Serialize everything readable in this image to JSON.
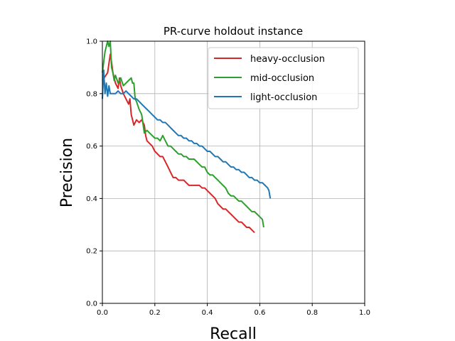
{
  "chart_data": {
    "type": "line",
    "title": "PR-curve holdout instance",
    "xlabel": "Recall",
    "ylabel": "Precision",
    "xlim": [
      0,
      1
    ],
    "ylim": [
      0,
      1
    ],
    "xticks": [
      "0.0",
      "0.2",
      "0.4",
      "0.6",
      "0.8",
      "1.0"
    ],
    "yticks": [
      "0.0",
      "0.2",
      "0.4",
      "0.6",
      "0.8",
      "1.0"
    ],
    "grid": true,
    "legend_position": "top-right",
    "series": [
      {
        "name": "heavy-occlusion",
        "color": "#d62728",
        "x": [
          0.0,
          0.02,
          0.03,
          0.035,
          0.04,
          0.05,
          0.06,
          0.065,
          0.07,
          0.08,
          0.09,
          0.1,
          0.105,
          0.11,
          0.12,
          0.13,
          0.14,
          0.15,
          0.16,
          0.165,
          0.17,
          0.18,
          0.19,
          0.2,
          0.21,
          0.22,
          0.23,
          0.24,
          0.25,
          0.26,
          0.27,
          0.28,
          0.29,
          0.3,
          0.31,
          0.32,
          0.33,
          0.34,
          0.35,
          0.36,
          0.37,
          0.38,
          0.39,
          0.4,
          0.41,
          0.42,
          0.43,
          0.44,
          0.45,
          0.46,
          0.47,
          0.48,
          0.49,
          0.5,
          0.51,
          0.52,
          0.53,
          0.54,
          0.55,
          0.56,
          0.57,
          0.58
        ],
        "y": [
          0.85,
          0.88,
          0.95,
          0.92,
          0.88,
          0.84,
          0.82,
          0.86,
          0.83,
          0.8,
          0.78,
          0.76,
          0.78,
          0.72,
          0.68,
          0.7,
          0.69,
          0.7,
          0.68,
          0.64,
          0.62,
          0.61,
          0.6,
          0.58,
          0.57,
          0.56,
          0.56,
          0.54,
          0.52,
          0.5,
          0.48,
          0.48,
          0.47,
          0.47,
          0.47,
          0.46,
          0.45,
          0.45,
          0.45,
          0.45,
          0.45,
          0.44,
          0.44,
          0.43,
          0.42,
          0.41,
          0.4,
          0.38,
          0.37,
          0.36,
          0.36,
          0.35,
          0.34,
          0.33,
          0.32,
          0.31,
          0.31,
          0.3,
          0.29,
          0.29,
          0.28,
          0.27
        ]
      },
      {
        "name": "mid-occlusion",
        "color": "#2ca02c",
        "x": [
          0.0,
          0.01,
          0.02,
          0.025,
          0.03,
          0.035,
          0.04,
          0.045,
          0.05,
          0.06,
          0.07,
          0.08,
          0.09,
          0.1,
          0.11,
          0.115,
          0.12,
          0.125,
          0.13,
          0.14,
          0.15,
          0.16,
          0.17,
          0.18,
          0.19,
          0.2,
          0.21,
          0.22,
          0.23,
          0.24,
          0.25,
          0.26,
          0.27,
          0.28,
          0.29,
          0.3,
          0.31,
          0.32,
          0.33,
          0.34,
          0.35,
          0.36,
          0.37,
          0.38,
          0.39,
          0.4,
          0.41,
          0.42,
          0.43,
          0.44,
          0.45,
          0.46,
          0.47,
          0.48,
          0.49,
          0.5,
          0.51,
          0.52,
          0.53,
          0.54,
          0.55,
          0.56,
          0.57,
          0.58,
          0.59,
          0.6,
          0.61,
          0.615
        ],
        "y": [
          0.88,
          0.96,
          1.0,
          0.98,
          1.0,
          0.9,
          0.88,
          0.85,
          0.87,
          0.84,
          0.86,
          0.83,
          0.84,
          0.85,
          0.86,
          0.84,
          0.84,
          0.78,
          0.77,
          0.74,
          0.72,
          0.65,
          0.66,
          0.65,
          0.64,
          0.63,
          0.63,
          0.62,
          0.64,
          0.62,
          0.6,
          0.6,
          0.59,
          0.58,
          0.57,
          0.57,
          0.56,
          0.56,
          0.55,
          0.55,
          0.55,
          0.54,
          0.53,
          0.52,
          0.52,
          0.5,
          0.49,
          0.49,
          0.48,
          0.47,
          0.46,
          0.45,
          0.44,
          0.42,
          0.41,
          0.41,
          0.4,
          0.39,
          0.39,
          0.38,
          0.37,
          0.36,
          0.35,
          0.35,
          0.34,
          0.33,
          0.32,
          0.29
        ]
      },
      {
        "name": "light-occlusion",
        "color": "#1f77b4",
        "x": [
          0.0,
          0.005,
          0.01,
          0.015,
          0.02,
          0.025,
          0.03,
          0.04,
          0.05,
          0.06,
          0.07,
          0.08,
          0.09,
          0.1,
          0.11,
          0.12,
          0.13,
          0.14,
          0.15,
          0.16,
          0.17,
          0.18,
          0.19,
          0.2,
          0.21,
          0.22,
          0.23,
          0.24,
          0.25,
          0.26,
          0.27,
          0.28,
          0.29,
          0.3,
          0.31,
          0.32,
          0.33,
          0.34,
          0.35,
          0.36,
          0.37,
          0.38,
          0.39,
          0.4,
          0.41,
          0.42,
          0.43,
          0.44,
          0.45,
          0.46,
          0.47,
          0.48,
          0.49,
          0.5,
          0.51,
          0.52,
          0.53,
          0.54,
          0.55,
          0.56,
          0.57,
          0.58,
          0.59,
          0.6,
          0.61,
          0.62,
          0.63,
          0.635,
          0.64
        ],
        "y": [
          0.78,
          0.89,
          0.8,
          0.84,
          0.79,
          0.83,
          0.8,
          0.8,
          0.8,
          0.81,
          0.8,
          0.8,
          0.81,
          0.8,
          0.79,
          0.78,
          0.78,
          0.77,
          0.76,
          0.75,
          0.74,
          0.73,
          0.72,
          0.71,
          0.7,
          0.7,
          0.69,
          0.69,
          0.68,
          0.67,
          0.66,
          0.65,
          0.64,
          0.64,
          0.63,
          0.63,
          0.62,
          0.62,
          0.61,
          0.61,
          0.6,
          0.6,
          0.59,
          0.58,
          0.58,
          0.57,
          0.56,
          0.56,
          0.55,
          0.54,
          0.54,
          0.53,
          0.52,
          0.52,
          0.51,
          0.51,
          0.5,
          0.5,
          0.49,
          0.48,
          0.48,
          0.47,
          0.47,
          0.46,
          0.46,
          0.45,
          0.44,
          0.43,
          0.4
        ]
      }
    ]
  }
}
